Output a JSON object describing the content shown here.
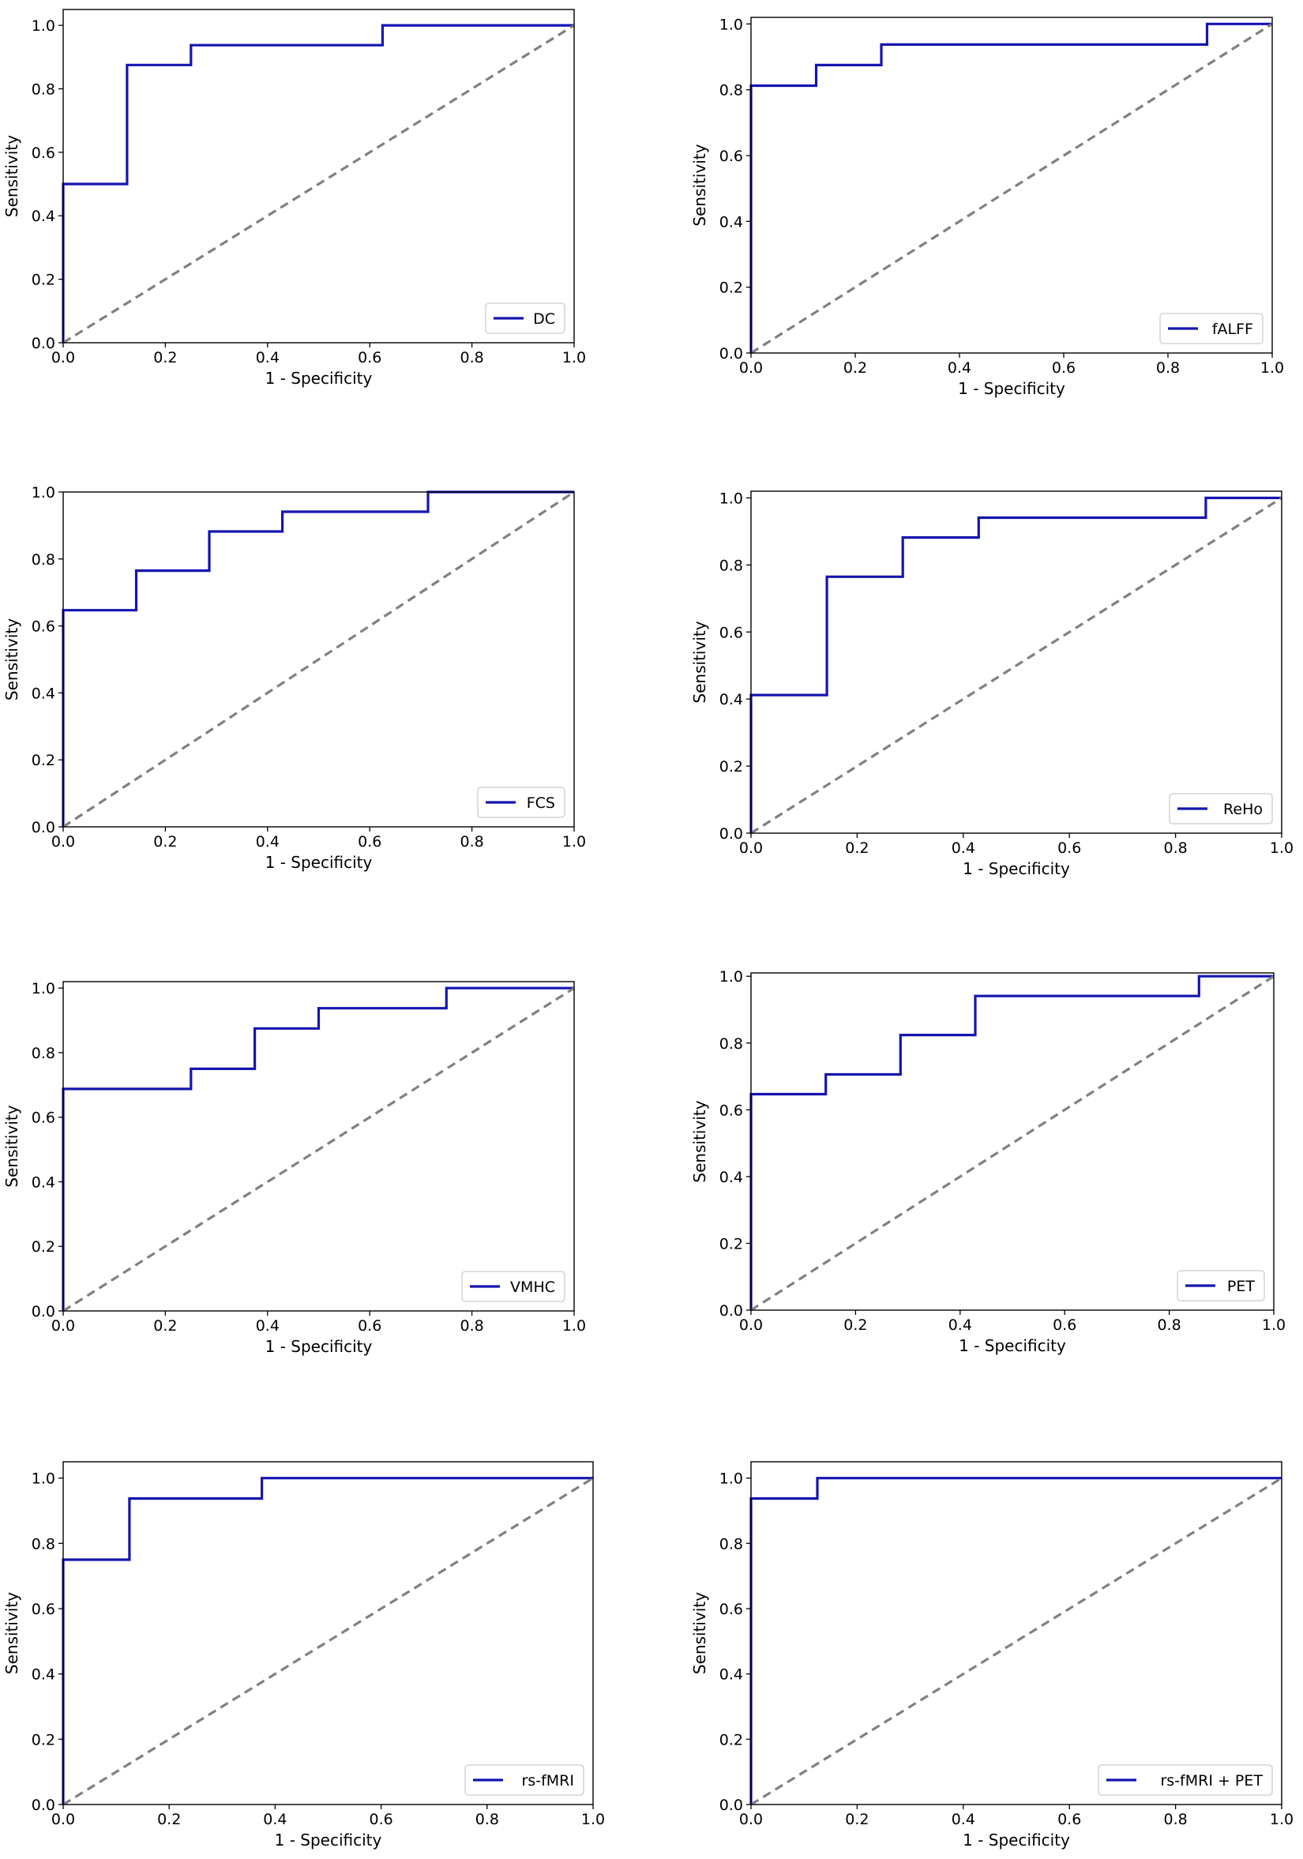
{
  "figure": {
    "name": "roc-curve-grid"
  },
  "chart_data": [
    {
      "type": "line",
      "title": "",
      "xlabel": "1 - Specificity",
      "ylabel": "Sensitivity",
      "xlim": [
        0,
        1
      ],
      "ylim": [
        0,
        1.05
      ],
      "xticks": [
        "0.0",
        "0.2",
        "0.4",
        "0.6",
        "0.8",
        "1.0"
      ],
      "yticks": [
        "0.0",
        "0.2",
        "0.4",
        "0.6",
        "0.8",
        "1.0"
      ],
      "legend_position": "lower-right",
      "series": [
        {
          "name": "DC",
          "color": "#1515b0",
          "x": [
            0,
            0,
            0.125,
            0.125,
            0.25,
            0.25,
            0.625,
            0.625,
            1
          ],
          "y": [
            0,
            0.5,
            0.5,
            0.875,
            0.875,
            0.9375,
            0.9375,
            1,
            1
          ]
        },
        {
          "name": "chance",
          "color": "#808080",
          "x": [
            0,
            1
          ],
          "y": [
            0,
            1
          ],
          "in_legend": false
        }
      ]
    },
    {
      "type": "line",
      "title": "",
      "xlabel": "1 - Specificity",
      "ylabel": "Sensitivity",
      "xlim": [
        0,
        1
      ],
      "ylim": [
        0,
        1.02
      ],
      "xticks": [
        "0.0",
        "0.2",
        "0.4",
        "0.6",
        "0.8",
        "1.0"
      ],
      "yticks": [
        "0.0",
        "0.2",
        "0.4",
        "0.6",
        "0.8",
        "1.0"
      ],
      "legend_position": "lower-right",
      "series": [
        {
          "name": "fALFF",
          "color": "#1515b0",
          "x": [
            0,
            0,
            0.125,
            0.125,
            0.25,
            0.25,
            0.875,
            0.875,
            1
          ],
          "y": [
            0,
            0.8125,
            0.8125,
            0.875,
            0.875,
            0.9375,
            0.9375,
            1,
            1
          ]
        },
        {
          "name": "chance",
          "color": "#808080",
          "x": [
            0,
            1
          ],
          "y": [
            0,
            1
          ],
          "in_legend": false
        }
      ]
    },
    {
      "type": "line",
      "title": "",
      "xlabel": "1 - Specificity",
      "ylabel": "Sensitivity",
      "xlim": [
        0,
        1
      ],
      "ylim": [
        0,
        1.0
      ],
      "xticks": [
        "0.0",
        "0.2",
        "0.4",
        "0.6",
        "0.8",
        "1.0"
      ],
      "yticks": [
        "0.0",
        "0.2",
        "0.4",
        "0.6",
        "0.8",
        "1.0"
      ],
      "legend_position": "lower-right",
      "series": [
        {
          "name": "FCS",
          "color": "#1515b0",
          "x": [
            0,
            0,
            0.143,
            0.143,
            0.286,
            0.286,
            0.429,
            0.429,
            0.714,
            0.714,
            1
          ],
          "y": [
            0,
            0.647,
            0.647,
            0.765,
            0.765,
            0.882,
            0.882,
            0.941,
            0.941,
            1,
            1
          ]
        },
        {
          "name": "chance",
          "color": "#808080",
          "x": [
            0,
            1
          ],
          "y": [
            0,
            1
          ],
          "in_legend": false
        }
      ]
    },
    {
      "type": "line",
      "title": "",
      "xlabel": "1 - Specificity",
      "ylabel": "Sensitivity",
      "xlim": [
        0,
        1
      ],
      "ylim": [
        0,
        1.02
      ],
      "xticks": [
        "0.0",
        "0.2",
        "0.4",
        "0.6",
        "0.8",
        "1.0"
      ],
      "yticks": [
        "0.0",
        "0.2",
        "0.4",
        "0.6",
        "0.8",
        "1.0"
      ],
      "legend_position": "lower-right",
      "series": [
        {
          "name": "ReHo",
          "color": "#1515b0",
          "x": [
            0,
            0,
            0.143,
            0.143,
            0.286,
            0.286,
            0.429,
            0.429,
            0.857,
            0.857,
            1
          ],
          "y": [
            0,
            0.412,
            0.412,
            0.765,
            0.765,
            0.882,
            0.882,
            0.941,
            0.941,
            1,
            1
          ]
        },
        {
          "name": "chance",
          "color": "#808080",
          "x": [
            0,
            1
          ],
          "y": [
            0,
            1
          ],
          "in_legend": false
        }
      ]
    },
    {
      "type": "line",
      "title": "",
      "xlabel": "1 - Specificity",
      "ylabel": "Sensitivity",
      "xlim": [
        0,
        1
      ],
      "ylim": [
        0,
        1.02
      ],
      "xticks": [
        "0.0",
        "0.2",
        "0.4",
        "0.6",
        "0.8",
        "1.0"
      ],
      "yticks": [
        "0.0",
        "0.2",
        "0.4",
        "0.6",
        "0.8",
        "1.0"
      ],
      "legend_position": "lower-right",
      "series": [
        {
          "name": "VMHC",
          "color": "#1515b0",
          "x": [
            0,
            0,
            0.25,
            0.25,
            0.375,
            0.375,
            0.5,
            0.5,
            0.75,
            0.75,
            1
          ],
          "y": [
            0,
            0.6875,
            0.6875,
            0.75,
            0.75,
            0.875,
            0.875,
            0.9375,
            0.9375,
            1,
            1
          ]
        },
        {
          "name": "chance",
          "color": "#808080",
          "x": [
            0,
            1
          ],
          "y": [
            0,
            1
          ],
          "in_legend": false
        }
      ]
    },
    {
      "type": "line",
      "title": "",
      "xlabel": "1 - Specificity",
      "ylabel": "Sensitivity",
      "xlim": [
        0,
        1
      ],
      "ylim": [
        0,
        1.01
      ],
      "xticks": [
        "0.0",
        "0.2",
        "0.4",
        "0.6",
        "0.8",
        "1.0"
      ],
      "yticks": [
        "0.0",
        "0.2",
        "0.4",
        "0.6",
        "0.8",
        "1.0"
      ],
      "legend_position": "lower-right",
      "series": [
        {
          "name": "PET",
          "color": "#1515b0",
          "x": [
            0,
            0,
            0.143,
            0.143,
            0.286,
            0.286,
            0.429,
            0.429,
            0.857,
            0.857,
            1
          ],
          "y": [
            0,
            0.647,
            0.647,
            0.706,
            0.706,
            0.824,
            0.824,
            0.941,
            0.941,
            1,
            1
          ]
        },
        {
          "name": "chance",
          "color": "#808080",
          "x": [
            0,
            1
          ],
          "y": [
            0,
            1
          ],
          "in_legend": false
        }
      ]
    },
    {
      "type": "line",
      "title": "",
      "xlabel": "1 - Specificity",
      "ylabel": "Sensitivity",
      "xlim": [
        0,
        1
      ],
      "ylim": [
        0,
        1.05
      ],
      "xticks": [
        "0.0",
        "0.2",
        "0.4",
        "0.6",
        "0.8",
        "1.0"
      ],
      "yticks": [
        "0.0",
        "0.2",
        "0.4",
        "0.6",
        "0.8",
        "1.0"
      ],
      "legend_position": "lower-right",
      "series": [
        {
          "name": "rs-fMRI",
          "color": "#1515b0",
          "x": [
            0,
            0,
            0.125,
            0.125,
            0.375,
            0.375,
            1
          ],
          "y": [
            0,
            0.75,
            0.75,
            0.9375,
            0.9375,
            1,
            1
          ]
        },
        {
          "name": "chance",
          "color": "#808080",
          "x": [
            0,
            1
          ],
          "y": [
            0,
            1
          ],
          "in_legend": false
        }
      ]
    },
    {
      "type": "line",
      "title": "",
      "xlabel": "1 - Specificity",
      "ylabel": "Sensitivity",
      "xlim": [
        0,
        1
      ],
      "ylim": [
        0,
        1.05
      ],
      "xticks": [
        "0.0",
        "0.2",
        "0.4",
        "0.6",
        "0.8",
        "1.0"
      ],
      "yticks": [
        "0.0",
        "0.2",
        "0.4",
        "0.6",
        "0.8",
        "1.0"
      ],
      "legend_position": "lower-right",
      "series": [
        {
          "name": "rs-fMRI + PET",
          "color": "#1515b0",
          "x": [
            0,
            0,
            0.125,
            0.125,
            1
          ],
          "y": [
            0,
            0.9375,
            0.9375,
            1,
            1
          ]
        },
        {
          "name": "chance",
          "color": "#808080",
          "x": [
            0,
            1
          ],
          "y": [
            0,
            1
          ],
          "in_legend": false
        }
      ]
    }
  ]
}
